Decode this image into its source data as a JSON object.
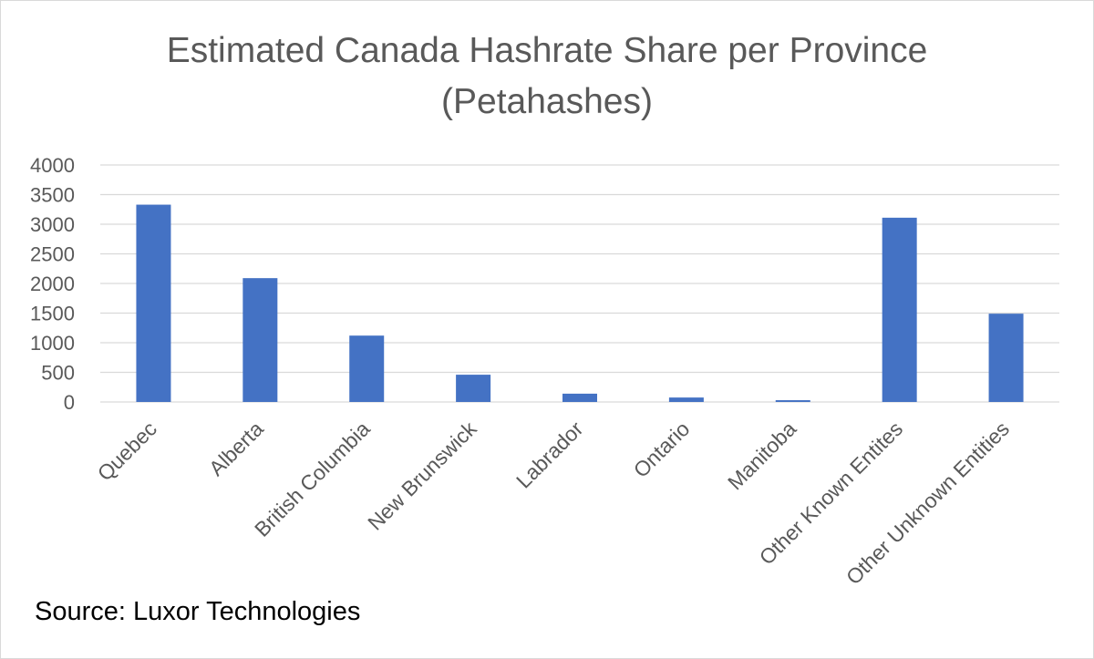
{
  "chart_data": {
    "type": "bar",
    "title": "Estimated Canada Hashrate Share per Province",
    "subtitle": "(Petahashes)",
    "categories": [
      "Quebec",
      "Alberta",
      "British Columbia",
      "New Brunswick",
      "Labrador",
      "Ontario",
      "Manitoba",
      "Other Known Entites",
      "Other Unknown Entities"
    ],
    "values": [
      3330,
      2090,
      1120,
      460,
      140,
      75,
      30,
      3110,
      1490
    ],
    "y_ticks": [
      "0",
      "500",
      "1000",
      "1500",
      "2000",
      "2500",
      "3000",
      "3500",
      "4000"
    ],
    "ylim": [
      0,
      4000
    ],
    "grid": true,
    "bar_color": "#4472c4",
    "source": "Source: Luxor Technologies"
  }
}
